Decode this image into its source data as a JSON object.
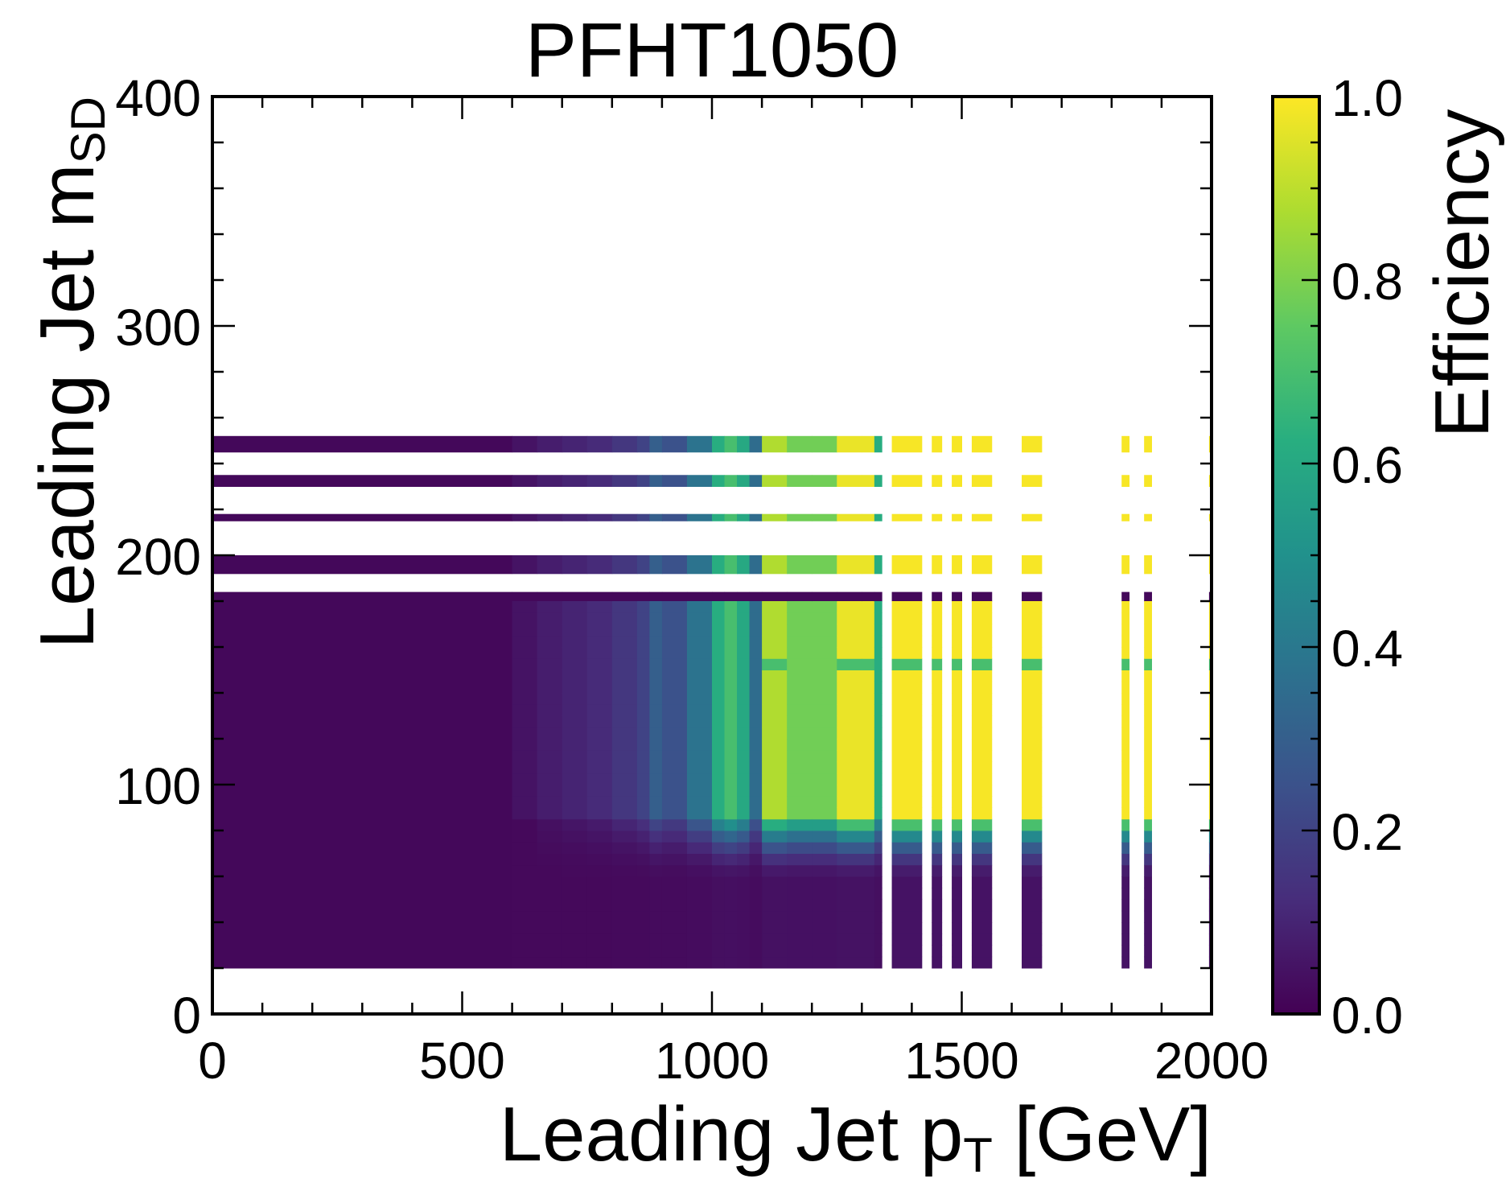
{
  "chart_data": {
    "type": "heatmap",
    "title": "PFHT1050",
    "xlabel": "Leading Jet p",
    "xlabel_sub": "T",
    "xlabel_unit": " [GeV]",
    "ylabel": "Leading Jet m",
    "ylabel_sub": "SD",
    "xlim": [
      0,
      2000
    ],
    "ylim": [
      0,
      400
    ],
    "xticks": [
      0,
      500,
      1000,
      1500,
      2000
    ],
    "xtick_labels": [
      "0",
      "500",
      "1000",
      "1500",
      "2000"
    ],
    "yticks": [
      0,
      100,
      200,
      300,
      400
    ],
    "ytick_labels": [
      "0",
      "100",
      "200",
      "300",
      "400"
    ],
    "colorbar": {
      "label": "Efficiency",
      "range": [
        0,
        1
      ],
      "ticks": [
        0,
        0.2,
        0.4,
        0.6,
        0.8,
        1.0
      ],
      "tick_labels": [
        "0.0",
        "0.2",
        "0.4",
        "0.6",
        "0.8",
        "1.0"
      ],
      "colormap": "viridis"
    },
    "x_bins": [
      [
        0,
        600,
        0.02
      ],
      [
        600,
        650,
        0.05
      ],
      [
        650,
        700,
        0.08
      ],
      [
        700,
        750,
        0.1
      ],
      [
        750,
        800,
        0.12
      ],
      [
        800,
        850,
        0.16
      ],
      [
        850,
        875,
        0.2
      ],
      [
        875,
        900,
        0.3
      ],
      [
        900,
        950,
        0.25
      ],
      [
        950,
        1000,
        0.38
      ],
      [
        1000,
        1025,
        0.62
      ],
      [
        1025,
        1050,
        0.7
      ],
      [
        1050,
        1075,
        0.6
      ],
      [
        1075,
        1100,
        0.35
      ],
      [
        1100,
        1150,
        0.88
      ],
      [
        1150,
        1200,
        0.78
      ],
      [
        1200,
        1250,
        0.78
      ],
      [
        1250,
        1300,
        0.97
      ],
      [
        1300,
        1325,
        0.97
      ],
      [
        1325,
        1340,
        0.62
      ],
      [
        1360,
        1420,
        0.99
      ],
      [
        1440,
        1460,
        0.99
      ],
      [
        1480,
        1500,
        0.99
      ],
      [
        1520,
        1560,
        0.99
      ],
      [
        1620,
        1660,
        0.99
      ],
      [
        1820,
        1835,
        0.99
      ],
      [
        1865,
        1880,
        0.99
      ],
      [
        1995,
        2000,
        0.99
      ]
    ],
    "y_bands": [
      {
        "y": [
          245,
          252
        ],
        "kind": "top"
      },
      {
        "y": [
          230,
          235
        ],
        "kind": "top"
      },
      {
        "y": [
          215,
          218
        ],
        "kind": "top"
      },
      {
        "y": [
          192,
          200
        ],
        "kind": "top"
      },
      {
        "y": [
          180,
          184
        ],
        "kind": "dark"
      },
      {
        "y": [
          20,
          180
        ],
        "kind": "main"
      }
    ]
  }
}
